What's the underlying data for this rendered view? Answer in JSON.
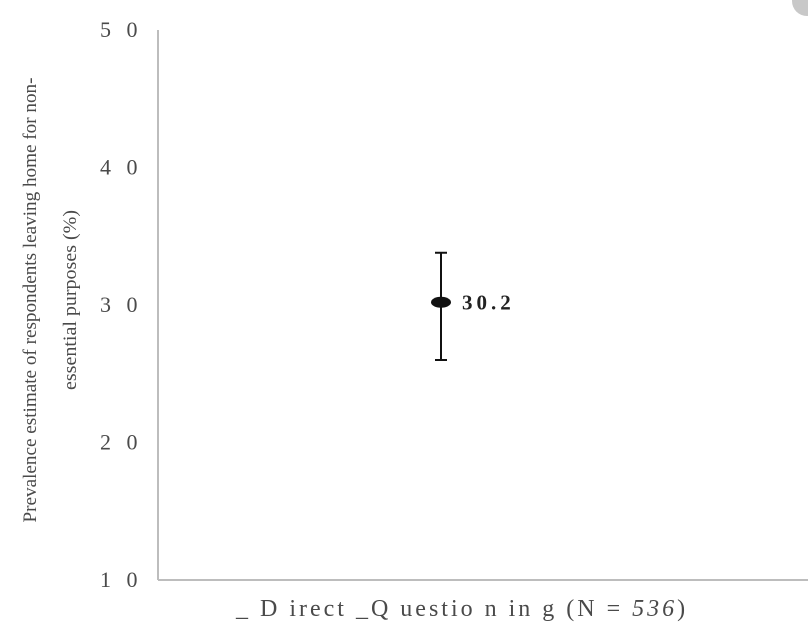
{
  "chart_data": {
    "type": "scatter",
    "categories": [
      "_Direct_Questioning (N = 536)"
    ],
    "series": [
      {
        "values": [
          30.2
        ],
        "error_low": [
          26.0
        ],
        "error_high": [
          33.8
        ],
        "data_labels": [
          "30.2"
        ]
      }
    ],
    "title": "",
    "xlabel": "",
    "ylabel": "Prevalence estimate of respondents leaving home for non-essential purposes (%)",
    "ylabel_lines": [
      "Prevalence estimate of respondents leaving home for non-",
      "essential purposes (%)"
    ],
    "ylim": [
      10,
      50
    ],
    "yticks": [
      10,
      20,
      30,
      40,
      50
    ],
    "ytick_labels": [
      "1 0",
      "2 0",
      "3 0",
      "4 0",
      "5 0"
    ],
    "x_label_display": [
      "_ D irec",
      "t _",
      "Q uestio n in g (N  =  ",
      "536",
      ")"
    ],
    "grid": false,
    "legend": "none"
  },
  "colors": {
    "axis": "#bdbdbd",
    "marker": "#111111",
    "text": "#4a4a4a"
  }
}
